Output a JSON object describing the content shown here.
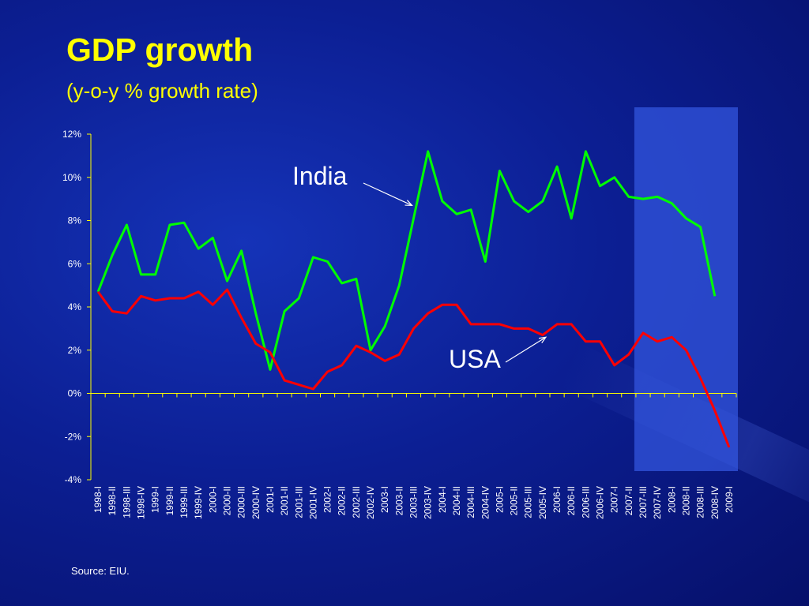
{
  "title": "GDP growth",
  "subtitle": "(y-o-y % growth rate)",
  "source": "Source: EIU.",
  "chart_data": {
    "type": "line",
    "title": "GDP growth",
    "subtitle": "(y-o-y % growth rate)",
    "xlabel": "",
    "ylabel": "",
    "ylim": [
      -4,
      12
    ],
    "yticks": [
      -4,
      -2,
      0,
      2,
      4,
      6,
      8,
      10,
      12
    ],
    "ytick_labels": [
      "-4%",
      "-2%",
      "0%",
      "2%",
      "4%",
      "6%",
      "8%",
      "10%",
      "12%"
    ],
    "categories": [
      "1998-I",
      "1998-II",
      "1998-III",
      "1998-IV",
      "1999-I",
      "1999-II",
      "1999-III",
      "1999-IV",
      "2000-I",
      "2000-II",
      "2000-III",
      "2000-IV",
      "2001-I",
      "2001-II",
      "2001-III",
      "2001-IV",
      "2002-I",
      "2002-II",
      "2002-III",
      "2002-IV",
      "2003-I",
      "2003-II",
      "2003-III",
      "2003-IV",
      "2004-I",
      "2004-II",
      "2004-III",
      "2004-IV",
      "2005-I",
      "2005-II",
      "2005-III",
      "2005-IV",
      "2006-I",
      "2006-II",
      "2006-III",
      "2006-IV",
      "2007-I",
      "2007-II",
      "2007-III",
      "2007-IV",
      "2008-I",
      "2008-II",
      "2008-III",
      "2008-IV",
      "2009-I"
    ],
    "series": [
      {
        "name": "India",
        "color": "#00ff00",
        "values": [
          4.7,
          6.4,
          7.8,
          5.5,
          5.5,
          7.8,
          7.9,
          6.7,
          7.2,
          5.2,
          6.6,
          3.7,
          1.1,
          3.8,
          4.4,
          6.3,
          6.1,
          5.1,
          5.3,
          2.0,
          3.1,
          5.0,
          8.1,
          11.2,
          8.9,
          8.3,
          8.5,
          6.1,
          10.3,
          8.9,
          8.4,
          8.9,
          10.5,
          8.1,
          11.2,
          9.6,
          10.0,
          9.1,
          9.0,
          9.1,
          8.8,
          8.1,
          7.7,
          4.5,
          null
        ]
      },
      {
        "name": "USA",
        "color": "#ff0000",
        "values": [
          4.7,
          3.8,
          3.7,
          4.5,
          4.3,
          4.4,
          4.4,
          4.7,
          4.1,
          4.8,
          3.5,
          2.3,
          1.9,
          0.6,
          0.4,
          0.2,
          1.0,
          1.3,
          2.2,
          1.9,
          1.5,
          1.8,
          3.0,
          3.7,
          4.1,
          4.1,
          3.2,
          3.2,
          3.2,
          3.0,
          3.0,
          2.7,
          3.2,
          3.2,
          2.4,
          2.4,
          1.3,
          1.8,
          2.8,
          2.4,
          2.6,
          2.0,
          0.7,
          -0.8,
          -2.5
        ]
      }
    ],
    "highlight_range": [
      "2007-III",
      "2009-I"
    ],
    "annotations": [
      {
        "text": "India",
        "series": "India"
      },
      {
        "text": "USA",
        "series": "USA"
      }
    ],
    "grid": false,
    "legend": "none"
  },
  "colors": {
    "title": "#ffff00",
    "axis": "#ffff00",
    "text": "#ffffff",
    "highlight": "#3355dd"
  }
}
